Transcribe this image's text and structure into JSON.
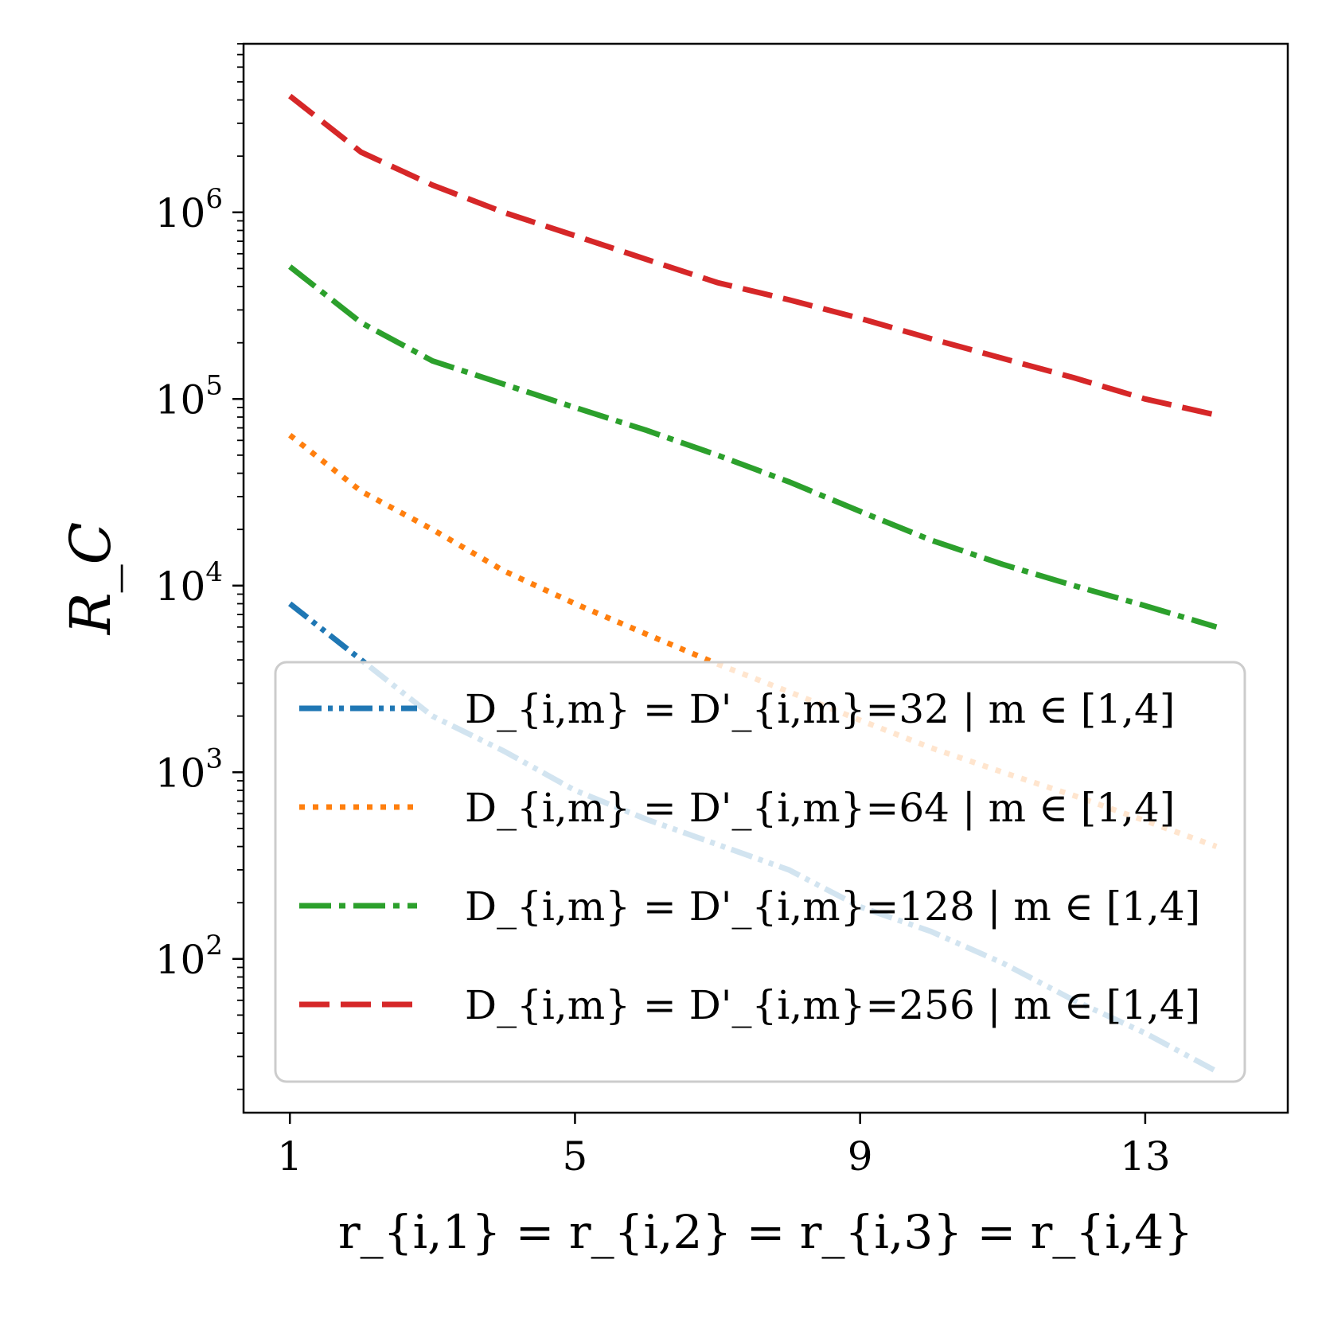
{
  "chart_data": {
    "type": "line",
    "xlabel": "r_{i,1} = r_{i,2} = r_{i,3} = r_{i,4}",
    "ylabel": "R_C",
    "xticks": [
      1,
      5,
      9,
      13
    ],
    "yticks": [
      {
        "value": 100,
        "base": "10",
        "exp": "2"
      },
      {
        "value": 1000,
        "base": "10",
        "exp": "3"
      },
      {
        "value": 10000,
        "base": "10",
        "exp": "4"
      },
      {
        "value": 100000,
        "base": "10",
        "exp": "5"
      },
      {
        "value": 1000000,
        "base": "10",
        "exp": "6"
      }
    ],
    "xlim": [
      0.35,
      15.0
    ],
    "ylim": [
      15,
      8000000
    ],
    "yscale": "log",
    "grid": false,
    "legend_position": "lower-right",
    "x": [
      1,
      2,
      3,
      4,
      5,
      6,
      7,
      8,
      9,
      10,
      11,
      12,
      13,
      14
    ],
    "series": [
      {
        "name": "D_{i,m} = D'_{i,m}=32 | m ∈ [1,4]",
        "legend_value": "32",
        "color": "#1f77b4",
        "style": "dash-dot-dot",
        "values": [
          8000,
          4000,
          2000,
          1300,
          800,
          560,
          410,
          300,
          190,
          140,
          95,
          60,
          40,
          25
        ]
      },
      {
        "name": "D_{i,m} = D'_{i,m}=64 | m ∈ [1,4]",
        "legend_value": "64",
        "color": "#ff7f0e",
        "style": "dotted",
        "values": [
          64000,
          32000,
          20000,
          12000,
          8000,
          5500,
          3800,
          2700,
          1900,
          1350,
          1000,
          750,
          550,
          400
        ]
      },
      {
        "name": "D_{i,m} = D'_{i,m}=128 | m ∈ [1,4]",
        "legend_value": "128",
        "color": "#2ca02c",
        "style": "dash-dot",
        "values": [
          512000,
          256000,
          160000,
          120000,
          90000,
          68000,
          50000,
          36000,
          25000,
          17500,
          13000,
          10000,
          7800,
          6000
        ]
      },
      {
        "name": "D_{i,m} = D'_{i,m}=256 | m ∈ [1,4]",
        "legend_value": "256",
        "color": "#d62728",
        "style": "dashed",
        "values": [
          4200000,
          2100000,
          1400000,
          1000000,
          750000,
          560000,
          420000,
          340000,
          270000,
          210000,
          165000,
          130000,
          100000,
          82000
        ]
      }
    ]
  }
}
